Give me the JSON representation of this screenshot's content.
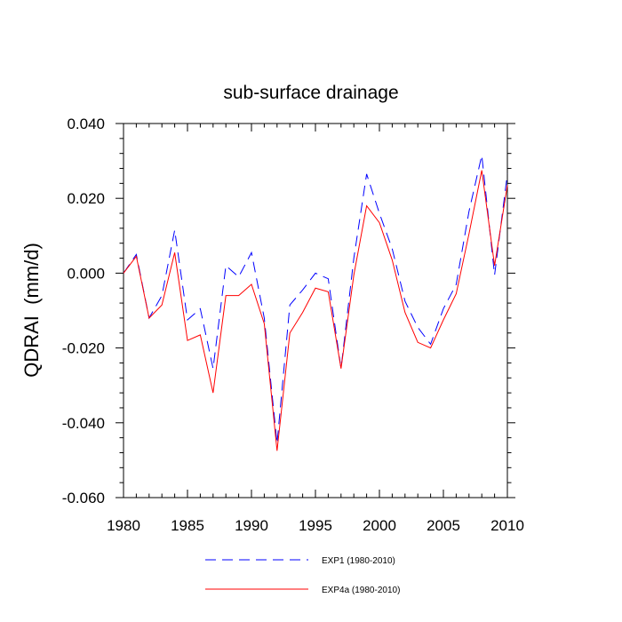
{
  "chart_data": {
    "type": "line",
    "title": "sub-surface drainage",
    "xlabel": "",
    "ylabel": "QDRAI  (mm/d)",
    "xlim": [
      1980,
      2010
    ],
    "ylim": [
      -0.06,
      0.04
    ],
    "x_ticks": [
      1980,
      1985,
      1990,
      1995,
      2000,
      2005,
      2010
    ],
    "x_tick_labels": [
      "1980",
      "1985",
      "1990",
      "1995",
      "2000",
      "2005",
      "2010"
    ],
    "y_ticks": [
      -0.06,
      -0.04,
      -0.02,
      0.0,
      0.02,
      0.04
    ],
    "y_tick_labels": [
      "-0.060",
      "-0.040",
      "-0.020",
      "0.000",
      "0.020",
      "0.040"
    ],
    "x": [
      1980,
      1981,
      1982,
      1983,
      1984,
      1985,
      1986,
      1987,
      1988,
      1989,
      1990,
      1991,
      1992,
      1993,
      1994,
      1995,
      1996,
      1997,
      1998,
      1999,
      2000,
      2001,
      2002,
      2003,
      2004,
      2005,
      2006,
      2007,
      2008,
      2009,
      2010
    ],
    "series": [
      {
        "name": "EXP1 (1980-2010)",
        "color": "#0000ff",
        "dash": "dashed",
        "values": [
          0.0,
          0.005,
          -0.012,
          -0.006,
          0.0115,
          -0.0125,
          -0.0095,
          -0.0255,
          0.002,
          -0.001,
          0.0055,
          -0.012,
          -0.0455,
          -0.0085,
          -0.0045,
          0.0,
          -0.0015,
          -0.0255,
          0.004,
          0.0265,
          0.016,
          0.0065,
          -0.0075,
          -0.0145,
          -0.019,
          -0.0095,
          -0.003,
          0.0165,
          0.0315,
          -0.0005,
          0.0265
        ]
      },
      {
        "name": "EXP4a (1980-2010)",
        "color": "#ff0000",
        "dash": "solid",
        "values": [
          0.0,
          0.0045,
          -0.012,
          -0.0085,
          0.0055,
          -0.018,
          -0.0165,
          -0.032,
          -0.006,
          -0.006,
          -0.003,
          -0.0135,
          -0.0475,
          -0.016,
          -0.0105,
          -0.004,
          -0.005,
          -0.0255,
          -0.0005,
          0.018,
          0.0135,
          0.0035,
          -0.0105,
          -0.0185,
          -0.02,
          -0.0125,
          -0.0055,
          0.0105,
          0.0275,
          0.002,
          0.0235
        ]
      }
    ]
  }
}
